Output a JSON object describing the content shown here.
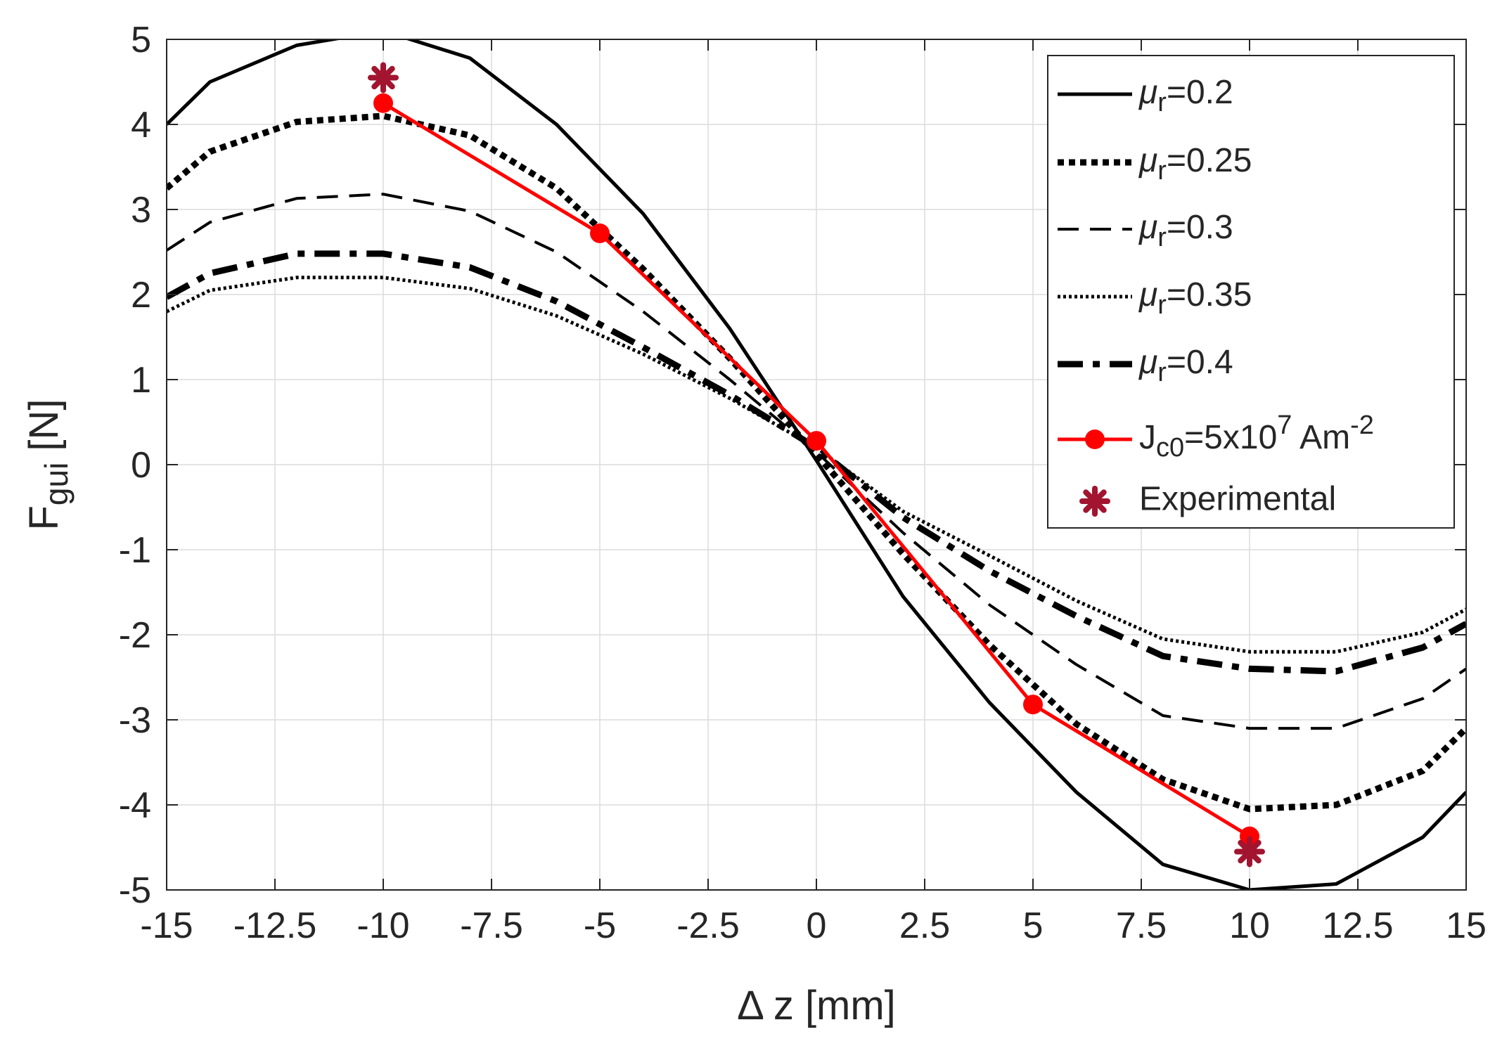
{
  "chart_data": {
    "type": "line",
    "title": "",
    "xlabel": "Δ z [mm]",
    "ylabel": {
      "main": "F",
      "sub": "gui",
      "unit": " [N]"
    },
    "xlim": [
      -15,
      15
    ],
    "ylim": [
      -5,
      5
    ],
    "grid": true,
    "legend_position": "top-right",
    "xticks": [
      -15,
      -12.5,
      -10,
      -7.5,
      -5,
      -2.5,
      0,
      2.5,
      5,
      7.5,
      10,
      12.5,
      15
    ],
    "xtick_labels": [
      "-15",
      "-12.5",
      "-10",
      "-7.5",
      "-5",
      "-2.5",
      "0",
      "2.5",
      "5",
      "7.5",
      "10",
      "12.5",
      "15"
    ],
    "yticks": [
      -5,
      -4,
      -3,
      -2,
      -1,
      0,
      1,
      2,
      3,
      4,
      5
    ],
    "ytick_labels": [
      "-5",
      "-4",
      "-3",
      "-2",
      "-1",
      "0",
      "1",
      "2",
      "3",
      "4",
      "5"
    ],
    "series": [
      {
        "name": "μr=0.2",
        "label_main": "μ",
        "label_sub": "r",
        "label_rest": "=0.2",
        "style": "solid",
        "color": "#000000",
        "x": [
          -15,
          -14,
          -12,
          -10,
          -8,
          -6,
          -4,
          -2,
          0,
          2,
          4,
          6,
          8,
          10,
          12,
          14,
          15
        ],
        "y": [
          4.0,
          4.5,
          4.93,
          5.1,
          4.78,
          4.0,
          2.95,
          1.6,
          0.05,
          -1.55,
          -2.8,
          -3.85,
          -4.7,
          -5.0,
          -4.93,
          -4.38,
          -3.85
        ]
      },
      {
        "name": "μr=0.25",
        "label_main": "μ",
        "label_sub": "r",
        "label_rest": "=0.25",
        "style": "dotted-heavy",
        "color": "#000000",
        "x": [
          -15,
          -14,
          -12,
          -10,
          -8,
          -6,
          -4,
          -2,
          0,
          2,
          4,
          6,
          8,
          10,
          12,
          14,
          15
        ],
        "y": [
          3.25,
          3.68,
          4.03,
          4.1,
          3.87,
          3.25,
          2.3,
          1.25,
          0.12,
          -1.05,
          -2.12,
          -3.05,
          -3.7,
          -4.05,
          -4.0,
          -3.6,
          -3.1
        ]
      },
      {
        "name": "μr=0.3",
        "label_main": "μ",
        "label_sub": "r",
        "label_rest": "=0.3",
        "style": "dashed",
        "color": "#000000",
        "x": [
          -15,
          -14,
          -12,
          -10,
          -8,
          -6,
          -4,
          -2,
          0,
          2,
          4,
          6,
          8,
          10,
          12,
          14,
          15
        ],
        "y": [
          2.52,
          2.85,
          3.13,
          3.18,
          2.98,
          2.5,
          1.8,
          1.0,
          0.15,
          -0.8,
          -1.65,
          -2.35,
          -2.95,
          -3.1,
          -3.1,
          -2.75,
          -2.4
        ]
      },
      {
        "name": "μr=0.35",
        "label_main": "μ",
        "label_sub": "r",
        "label_rest": "=0.35",
        "style": "dotted-fine",
        "color": "#000000",
        "x": [
          -15,
          -14,
          -12,
          -10,
          -8,
          -6,
          -4,
          -2,
          0,
          2,
          4,
          6,
          8,
          10,
          12,
          14,
          15
        ],
        "y": [
          1.8,
          2.05,
          2.2,
          2.2,
          2.07,
          1.75,
          1.3,
          0.78,
          0.2,
          -0.55,
          -1.07,
          -1.6,
          -2.05,
          -2.2,
          -2.2,
          -1.97,
          -1.7
        ]
      },
      {
        "name": "μr=0.4",
        "label_main": "μ",
        "label_sub": "r",
        "label_rest": "=0.4",
        "style": "dash-heavy",
        "color": "#000000",
        "x": [
          -15,
          -14,
          -12,
          -10,
          -8,
          -6,
          -4,
          -2,
          0,
          2,
          4,
          6,
          8,
          10,
          12,
          14,
          15
        ],
        "y": [
          1.97,
          2.25,
          2.48,
          2.48,
          2.32,
          1.92,
          1.38,
          0.82,
          0.2,
          -0.62,
          -1.25,
          -1.78,
          -2.25,
          -2.4,
          -2.43,
          -2.15,
          -1.87
        ]
      },
      {
        "name": "Jc0=5x10^7 Am^-2",
        "label_main": "J",
        "label_sub": "c0",
        "label_rest": "=5x10",
        "label_sup1": "7",
        "label_rest2": " Am",
        "label_sup2": "-2",
        "style": "marker-line",
        "color": "#ff0000",
        "x": [
          -10,
          -5,
          0,
          5,
          10
        ],
        "y": [
          4.25,
          2.72,
          0.28,
          -2.82,
          -4.37
        ]
      },
      {
        "name": "Experimental",
        "label_main": "Experimental",
        "style": "asterisk",
        "color": "#a2142f",
        "x": [
          -10,
          10
        ],
        "y": [
          4.55,
          -4.55
        ]
      }
    ]
  }
}
